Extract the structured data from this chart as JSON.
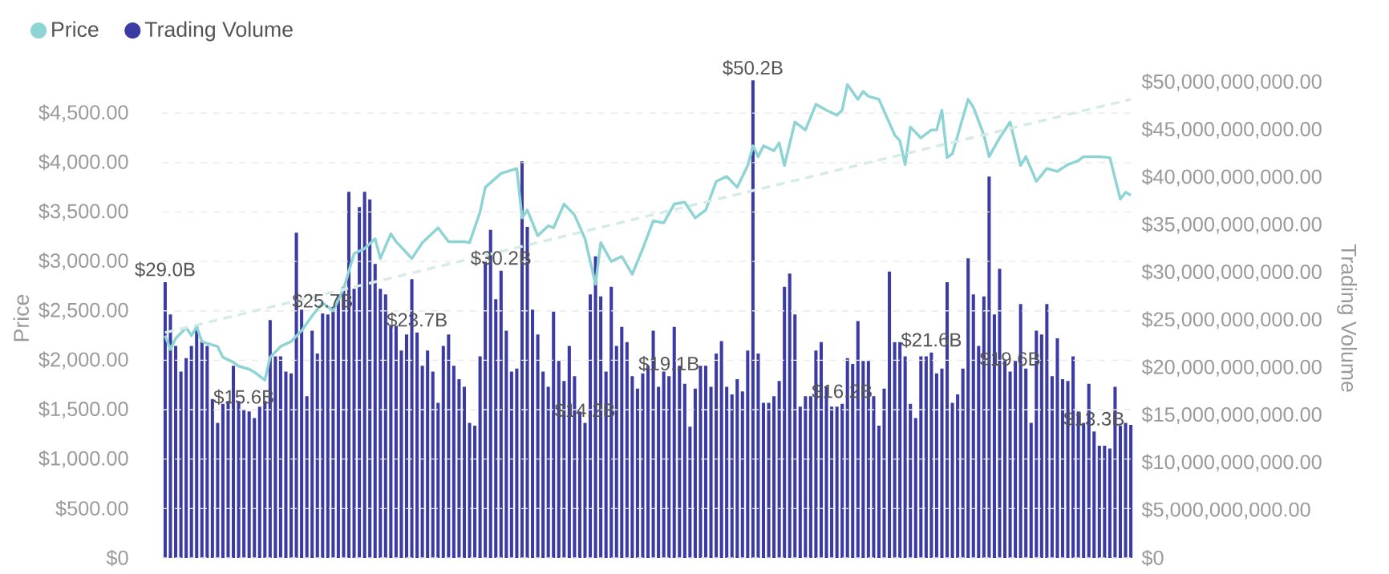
{
  "chart_data": {
    "type": "bar",
    "ylabel": "Price",
    "y2label": "Trading Volume",
    "categories": [
      null,
      null,
      null,
      null,
      null,
      null,
      null,
      null,
      null,
      null,
      null,
      null,
      null,
      null,
      null,
      null,
      null,
      null,
      null,
      null,
      null,
      null,
      null,
      null,
      null,
      null,
      null,
      null,
      null,
      null,
      null,
      null,
      null,
      null,
      null,
      null,
      null,
      null,
      null,
      null,
      null,
      null,
      null,
      null,
      null,
      null,
      null,
      null,
      null,
      null,
      null,
      null,
      null,
      null,
      null,
      null,
      null,
      null,
      null,
      null,
      null,
      null,
      null,
      null,
      null,
      null,
      null,
      null,
      null,
      null,
      null,
      null,
      null,
      null,
      null,
      null,
      null,
      null,
      null,
      null,
      null,
      null,
      null,
      null,
      null,
      null,
      null,
      null,
      null,
      null,
      null,
      null,
      null,
      null,
      null,
      null,
      null,
      null,
      null,
      null,
      null,
      null,
      null,
      null,
      null,
      null,
      null,
      null,
      null,
      null,
      null,
      null,
      null,
      null,
      null,
      null,
      null,
      null,
      null,
      null,
      null,
      null,
      null,
      null,
      null,
      null,
      null,
      null,
      null,
      null,
      null,
      null,
      null,
      null,
      null,
      null,
      null,
      null,
      null,
      null,
      null,
      null,
      null,
      null,
      null,
      null,
      null,
      null,
      null,
      null,
      null,
      null,
      null,
      null,
      null,
      null,
      null,
      null,
      null,
      null,
      null,
      null,
      null,
      null,
      null,
      null,
      null,
      null,
      null,
      null,
      null,
      null,
      null,
      null,
      null,
      null,
      null,
      null,
      null,
      null,
      null,
      null,
      null,
      null,
      null
    ],
    "series": [
      {
        "name": "Price",
        "type": "line",
        "axis": "y",
        "color": "#8fd4d4",
        "values": [
          2250,
          2110,
          2220,
          null,
          2330,
          2250,
          2340,
          2190,
          2170,
          null,
          2140,
          2030,
          null,
          1980,
          1940,
          null,
          1910,
          1880,
          null,
          1800,
          2030,
          null,
          2140,
          null,
          2190,
          null,
          2300,
          null,
          2450,
          null,
          2580,
          null,
          2500,
          null,
          2720,
          null,
          3080,
          null,
          3130,
          null,
          3230,
          3030,
          null,
          3280,
          3200,
          null,
          null,
          3030,
          null,
          3190,
          null,
          null,
          3340,
          null,
          3200,
          null,
          null,
          3200,
          3190,
          null,
          3500,
          3750,
          null,
          null,
          3890,
          null,
          null,
          3940,
          3440,
          3520,
          null,
          3260,
          null,
          3360,
          3340,
          null,
          3580,
          null,
          3470,
          null,
          3230,
          null,
          2770,
          3190,
          null,
          3000,
          null,
          3050,
          null,
          2870,
          null,
          3130,
          null,
          3410,
          null,
          3390,
          null,
          3580,
          null,
          3600,
          null,
          3440,
          null,
          3520,
          null,
          3810,
          null,
          3860,
          null,
          3750,
          null,
          3970,
          4170,
          4060,
          4170,
          null,
          4120,
          4200,
          3970,
          null,
          4410,
          null,
          4330,
          null,
          4590,
          null,
          4530,
          null,
          4480,
          4530,
          4790,
          null,
          4640,
          4720,
          4670,
          null,
          4640,
          null,
          null,
          4280,
          4220,
          3980,
          4360,
          null,
          4250,
          null,
          4330,
          4330,
          4530,
          4050,
          4090,
          null,
          null,
          4640,
          4560,
          null,
          4280,
          4060,
          null,
          4250,
          null,
          4410,
          null,
          3970,
          4060,
          null,
          3810,
          null,
          3940,
          null,
          3910,
          null,
          3980,
          null,
          4020,
          4060,
          null,
          null,
          4060,
          null,
          4050,
          null,
          3630,
          3700,
          3670
        ]
      },
      {
        "name": "Trading Volume",
        "axis": "y2",
        "color": "#3b3ba3",
        "values": [
          29000000000.0,
          25600000000.0,
          22300000000.0,
          19600000000.0,
          21000000000.0,
          22300000000.0,
          24400000000.0,
          22800000000.0,
          22300000000.0,
          16700000000.0,
          14200000000.0,
          16200000000.0,
          16500000000.0,
          20200000000.0,
          16500000000.0,
          15600000000.0,
          15400000000.0,
          14700000000.0,
          15900000000.0,
          16500000000.0,
          25000000000.0,
          21200000000.0,
          21200000000.0,
          19600000000.0,
          19400000000.0,
          34200000000.0,
          26100000000.0,
          17000000000.0,
          23900000000.0,
          21500000000.0,
          25700000000.0,
          25600000000.0,
          26400000000.0,
          27700000000.0,
          28500000000.0,
          38500000000.0,
          28300000000.0,
          36900000000.0,
          38500000000.0,
          37700000000.0,
          30900000000.0,
          28300000000.0,
          27700000000.0,
          24400000000.0,
          24400000000.0,
          21800000000.0,
          23500000000.0,
          29300000000.0,
          23700000000.0,
          20200000000.0,
          21800000000.0,
          19600000000.0,
          16300000000.0,
          22300000000.0,
          23500000000.0,
          20200000000.0,
          18800000000.0,
          18000000000.0,
          14200000000.0,
          13900000000.0,
          21200000000.0,
          31200000000.0,
          34500000000.0,
          27200000000.0,
          30200000000.0,
          23900000000.0,
          19600000000.0,
          19900000000.0,
          41700000000.0,
          34800000000.0,
          26100000000.0,
          23500000000.0,
          19600000000.0,
          18000000000.0,
          25900000000.0,
          20700000000.0,
          18600000000.0,
          22300000000.0,
          19100000000.0,
          15400000000.0,
          14200000000.0,
          27700000000.0,
          31700000000.0,
          27500000000.0,
          19600000000.0,
          28500000000.0,
          22300000000.0,
          24300000000.0,
          22700000000.0,
          19100000000.0,
          17800000000.0,
          19400000000.0,
          20200000000.0,
          23900000000.0,
          18000000000.0,
          19600000000.0,
          19100000000.0,
          24300000000.0,
          20200000000.0,
          18300000000.0,
          13800000000.0,
          17800000000.0,
          20200000000.0,
          20200000000.0,
          18000000000.0,
          21500000000.0,
          22800000000.0,
          18000000000.0,
          17200000000.0,
          18800000000.0,
          17500000000.0,
          21800000000.0,
          50200000000.0,
          21500000000.0,
          16300000000.0,
          16300000000.0,
          17000000000.0,
          18600000000.0,
          28500000000.0,
          29900000000.0,
          25600000000.0,
          15900000000.0,
          17000000000.0,
          17000000000.0,
          21800000000.0,
          22700000000.0,
          18000000000.0,
          15900000000.0,
          15900000000.0,
          16200000000.0,
          21000000000.0,
          20400000000.0,
          24900000000.0,
          20700000000.0,
          20700000000.0,
          17000000000.0,
          13900000000.0,
          17800000000.0,
          30100000000.0,
          22700000000.0,
          22700000000.0,
          21200000000.0,
          16200000000.0,
          14700000000.0,
          21200000000.0,
          21200000000.0,
          21600000000.0,
          19400000000.0,
          19900000000.0,
          29000000000.0,
          16300000000.0,
          17200000000.0,
          19900000000.0,
          31500000000.0,
          27700000000.0,
          22300000000.0,
          27500000000.0,
          40100000000.0,
          25600000000.0,
          30400000000.0,
          20700000000.0,
          19600000000.0,
          20700000000.0,
          26700000000.0,
          19900000000.0,
          14200000000.0,
          23900000000.0,
          23500000000.0,
          26700000000.0,
          19100000000.0,
          23100000000.0,
          18800000000.0,
          18600000000.0,
          21200000000.0,
          15400000000.0,
          14200000000.0,
          18300000000.0,
          13300000000.0,
          11800000000.0,
          11800000000.0,
          11500000000.0,
          18000000000.0,
          13900000000.0,
          14200000000.0,
          14000000000.0
        ],
        "value_labels": [
          "$29.0B",
          null,
          null,
          null,
          null,
          null,
          null,
          null,
          null,
          null,
          null,
          null,
          null,
          null,
          null,
          "$15.6B",
          null,
          null,
          null,
          null,
          null,
          null,
          null,
          null,
          null,
          null,
          null,
          null,
          null,
          null,
          "$25.7B",
          null,
          null,
          null,
          null,
          null,
          null,
          null,
          null,
          null,
          null,
          null,
          null,
          null,
          null,
          null,
          null,
          null,
          "$23.7B",
          null,
          null,
          null,
          null,
          null,
          null,
          null,
          null,
          null,
          null,
          null,
          null,
          null,
          null,
          null,
          "$30.2B",
          null,
          null,
          null,
          null,
          null,
          null,
          null,
          null,
          null,
          null,
          null,
          null,
          null,
          null,
          null,
          "$14.2B",
          null,
          null,
          null,
          null,
          null,
          null,
          null,
          null,
          null,
          null,
          null,
          null,
          null,
          null,
          null,
          "$19.1B",
          null,
          null,
          null,
          null,
          null,
          null,
          null,
          null,
          null,
          null,
          null,
          null,
          null,
          null,
          null,
          "$50.2B",
          null,
          null,
          null,
          null,
          null,
          null,
          null,
          null,
          null,
          null,
          null,
          null,
          null,
          null,
          null,
          null,
          "$16.2B",
          null,
          null,
          null,
          null,
          null,
          null,
          null,
          null,
          null,
          null,
          null,
          null,
          null,
          null,
          null,
          null,
          "$21.6B",
          null,
          null,
          null,
          null,
          null,
          null,
          null,
          null,
          null,
          null,
          null,
          null,
          null,
          null,
          "$19.6B",
          null,
          null,
          null,
          null,
          null,
          null,
          null,
          null,
          null,
          null,
          null,
          null,
          null,
          null,
          null,
          "$13.3B",
          null,
          null,
          null,
          null,
          null,
          null,
          null
        ]
      },
      {
        "type": "line",
        "axis": "y",
        "color": "#d5ebe8",
        "line_style": "dashed",
        "values": [
          2280,
          null,
          null,
          null,
          null,
          null,
          null,
          null,
          null,
          null,
          null,
          null,
          null,
          null,
          null,
          null,
          null,
          null,
          null,
          null,
          null,
          null,
          null,
          null,
          null,
          null,
          null,
          null,
          null,
          null,
          null,
          null,
          null,
          null,
          null,
          null,
          null,
          null,
          null,
          null,
          null,
          null,
          null,
          null,
          null,
          null,
          null,
          null,
          null,
          null,
          null,
          null,
          null,
          null,
          null,
          null,
          null,
          null,
          null,
          null,
          null,
          null,
          null,
          null,
          null,
          null,
          null,
          null,
          null,
          null,
          null,
          null,
          null,
          null,
          null,
          null,
          null,
          null,
          null,
          null,
          null,
          null,
          null,
          null,
          null,
          null,
          null,
          null,
          null,
          null,
          null,
          null,
          null,
          null,
          null,
          null,
          null,
          null,
          null,
          null,
          null,
          null,
          null,
          null,
          null,
          null,
          null,
          null,
          null,
          null,
          null,
          null,
          null,
          null,
          null,
          null,
          null,
          null,
          null,
          null,
          null,
          null,
          null,
          null,
          null,
          null,
          null,
          null,
          null,
          null,
          null,
          null,
          null,
          null,
          null,
          null,
          null,
          null,
          null,
          null,
          null,
          null,
          null,
          null,
          null,
          null,
          null,
          null,
          null,
          null,
          null,
          null,
          null,
          null,
          null,
          null,
          null,
          null,
          null,
          null,
          null,
          null,
          null,
          null,
          null,
          null,
          null,
          null,
          null,
          null,
          null,
          null,
          null,
          null,
          null,
          null,
          null,
          null,
          null,
          null,
          null,
          null,
          null,
          null,
          4640
        ]
      }
    ],
    "ylim": [
      0,
      4850
    ],
    "yticks": [
      {
        "value": 0,
        "label": "$0"
      },
      {
        "value": 500,
        "label": "$500.00"
      },
      {
        "value": 1000,
        "label": "$1,000.00"
      },
      {
        "value": 1500,
        "label": "$1,500.00"
      },
      {
        "value": 2000,
        "label": "$2,000.00"
      },
      {
        "value": 2500,
        "label": "$2,500.00"
      },
      {
        "value": 3000,
        "label": "$3,000.00"
      },
      {
        "value": 3500,
        "label": "$3,500.00"
      },
      {
        "value": 4000,
        "label": "$4,000.00"
      },
      {
        "value": 4500,
        "label": "$4,500.00"
      }
    ],
    "y2lim": [
      0,
      50400000000
    ],
    "y2ticks": [
      {
        "value": 0,
        "label": "$0"
      },
      {
        "value": 5000000000,
        "label": "$5,000,000,000.00"
      },
      {
        "value": 10000000000,
        "label": "$10,000,000,000.00"
      },
      {
        "value": 15000000000,
        "label": "$15,000,000,000.00"
      },
      {
        "value": 20000000000,
        "label": "$20,000,000,000.00"
      },
      {
        "value": 25000000000,
        "label": "$25,000,000,000.00"
      },
      {
        "value": 30000000000,
        "label": "$30,000,000,000.00"
      },
      {
        "value": 35000000000,
        "label": "$35,000,000,000.00"
      },
      {
        "value": 40000000000,
        "label": "$40,000,000,000.00"
      },
      {
        "value": 45000000000,
        "label": "$45,000,000,000.00"
      },
      {
        "value": 50000000000,
        "label": "$50,000,000,000.00"
      }
    ],
    "grid": "y",
    "legend": "top left",
    "marker": "none"
  }
}
